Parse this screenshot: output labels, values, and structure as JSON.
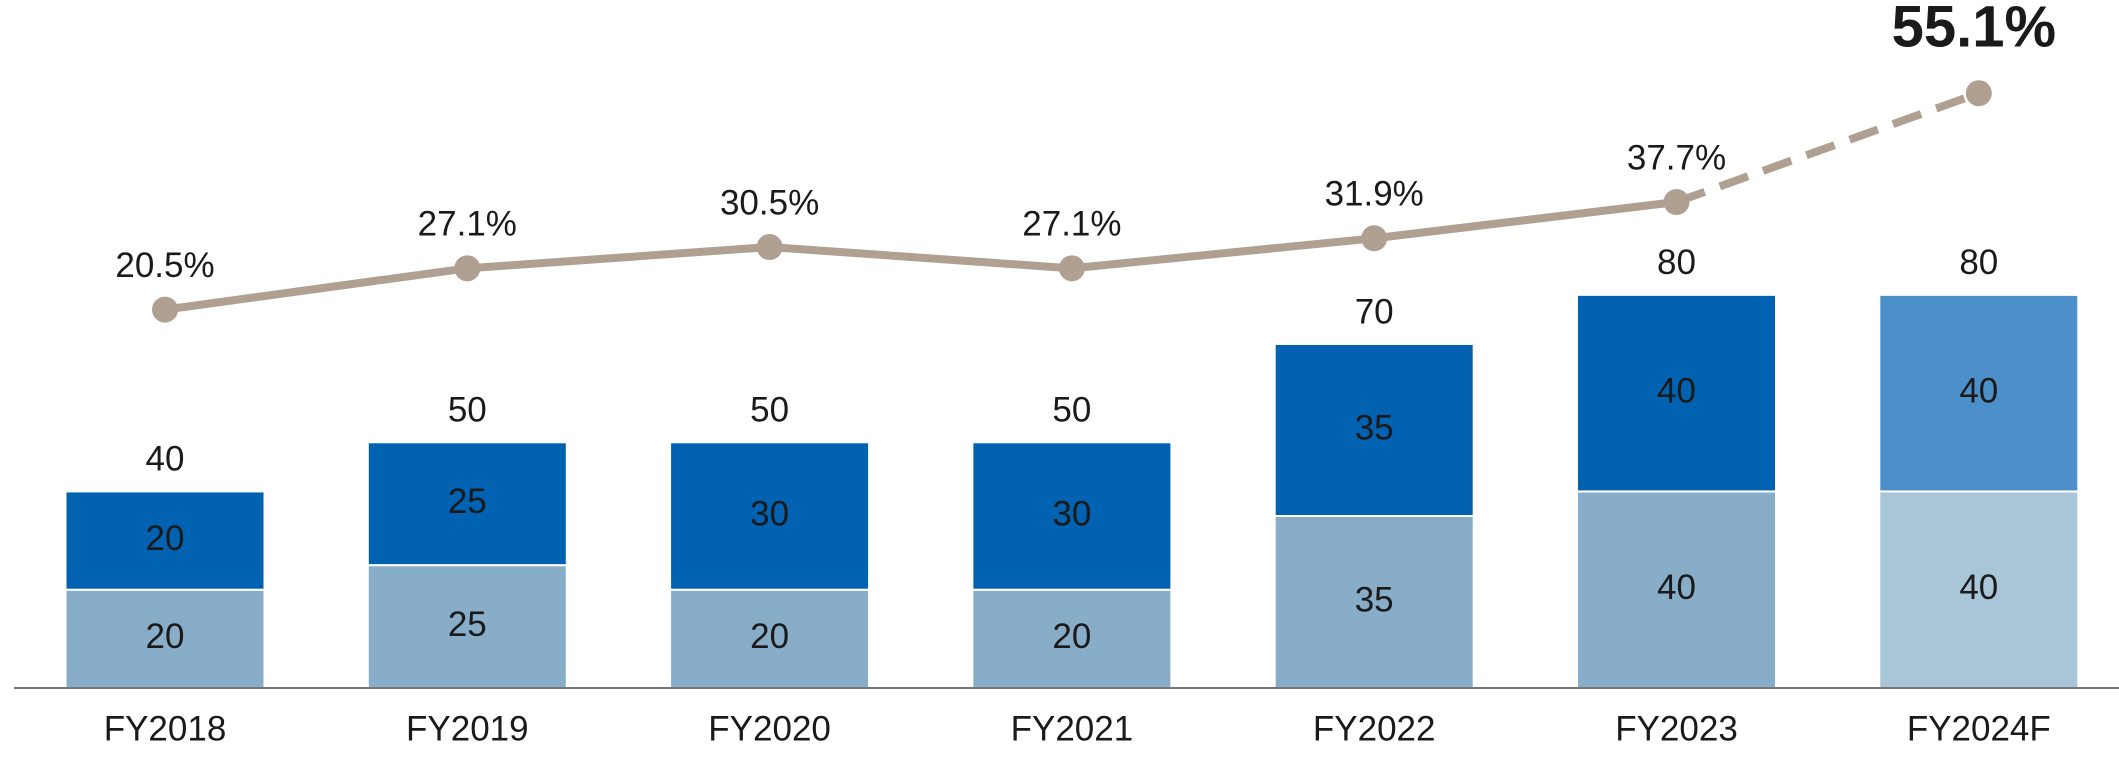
{
  "chart_data": {
    "type": "stacked_bar_line",
    "categories": [
      "FY2018",
      "FY2019",
      "FY2020",
      "FY2021",
      "FY2022",
      "FY2023",
      "FY2024F"
    ],
    "series": [
      {
        "values": [
          20,
          25,
          20,
          20,
          35,
          40,
          40
        ],
        "colors": [
          "#87adc8",
          "#87adc8",
          "#87adc8",
          "#87adc8",
          "#87adc8",
          "#87adc8",
          "#a9c6d8"
        ]
      },
      {
        "values": [
          20,
          25,
          30,
          30,
          35,
          40,
          40
        ],
        "colors": [
          "#0062b1",
          "#0062b1",
          "#0062b1",
          "#0062b1",
          "#0062b1",
          "#0062b1",
          "#4d8fc8"
        ]
      },
      {
        "type": "line",
        "axis": "y2",
        "color": "#b0a091",
        "dashed_from": 5,
        "highlight": 6,
        "values": [
          20.5,
          27.1,
          30.5,
          27.1,
          31.9,
          37.7,
          55.1
        ],
        "value_labels": [
          "20.5%",
          "27.1%",
          "30.5%",
          "27.1%",
          "31.9%",
          "37.7%",
          "55.1%"
        ]
      }
    ],
    "totals": [
      40,
      50,
      50,
      50,
      70,
      80,
      80
    ],
    "ylim": [
      0,
      140
    ],
    "y2lim": [
      -40,
      70
    ]
  }
}
